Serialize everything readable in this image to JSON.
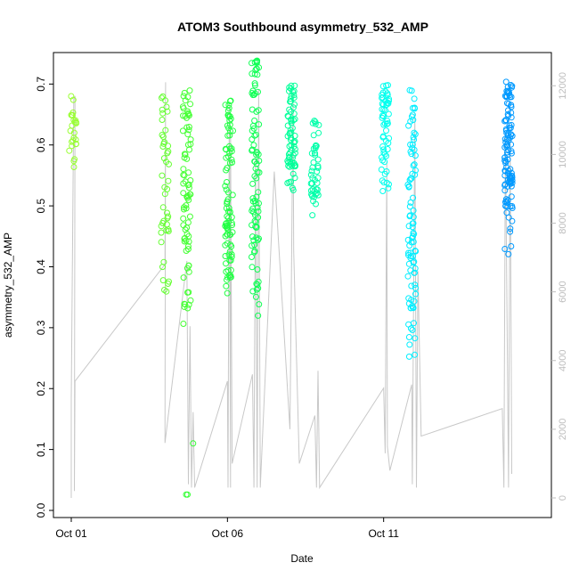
{
  "chart_data": {
    "type": "scatter",
    "title": "ATOM3 Southbound asymmetry_532_AMP",
    "xlabel": "Date",
    "ylabel": "asymmetry_532_AMP",
    "x_ticks": [
      "Oct 01",
      "Oct 06",
      "Oct 11"
    ],
    "y_ticks": [
      "0.0",
      "0.1",
      "0.2",
      "0.3",
      "0.4",
      "0.5",
      "0.6",
      "0.7"
    ],
    "y_right_ticks": [
      "0",
      "2000",
      "4000",
      "6000",
      "8000",
      "10000",
      "12000"
    ],
    "xlim_days": [
      0.0,
      14.8
    ],
    "ylim": [
      0.0,
      0.74
    ],
    "y_right_lim": [
      0,
      12500
    ],
    "legend": "none",
    "grid": false,
    "colors": {
      "secondary_line": "#c8c8c8",
      "right_axis": "#bdbdbd",
      "point_gradient_start": "#9bff33",
      "point_gradient_end": "#0099ff"
    },
    "scatter_clusters": [
      {
        "day": 0.05,
        "y_min": 0.54,
        "y_max": 0.68,
        "n": 25,
        "color": "#99ff33"
      },
      {
        "day": 3.0,
        "y_min": 0.32,
        "y_max": 0.68,
        "n": 45,
        "color": "#66ff33"
      },
      {
        "day": 3.7,
        "y_min": 0.28,
        "y_max": 0.69,
        "n": 80,
        "color": "#44ff33"
      },
      {
        "day": 5.05,
        "y_min": 0.31,
        "y_max": 0.68,
        "n": 90,
        "color": "#22ff44"
      },
      {
        "day": 5.9,
        "y_min": 0.29,
        "y_max": 0.74,
        "n": 90,
        "color": "#11ff55"
      },
      {
        "day": 7.05,
        "y_min": 0.5,
        "y_max": 0.7,
        "n": 70,
        "color": "#00ff99"
      },
      {
        "day": 7.8,
        "y_min": 0.47,
        "y_max": 0.64,
        "n": 45,
        "color": "#00ffaa"
      },
      {
        "day": 10.05,
        "y_min": 0.51,
        "y_max": 0.7,
        "n": 55,
        "color": "#00ffee"
      },
      {
        "day": 10.9,
        "y_min": 0.22,
        "y_max": 0.69,
        "n": 90,
        "color": "#00eeff"
      },
      {
        "day": 14.0,
        "y_min": 0.41,
        "y_max": 0.71,
        "n": 110,
        "color": "#0099ff"
      }
    ],
    "outlier_points": [
      {
        "day": 3.68,
        "y": 0.026,
        "color": "#33ff33"
      },
      {
        "day": 3.72,
        "y": 0.026,
        "color": "#33ff33"
      },
      {
        "day": 3.9,
        "y": 0.11,
        "color": "#33ff33"
      }
    ],
    "secondary_series": {
      "name": "",
      "axis": "right",
      "points": [
        [
          0.0,
          0
        ],
        [
          0.0,
          2900
        ],
        [
          0.08,
          11600
        ],
        [
          0.12,
          11700
        ],
        [
          0.1,
          200
        ],
        [
          0.12,
          3400
        ],
        [
          3.0,
          6800
        ],
        [
          3.02,
          12100
        ],
        [
          3.0,
          1600
        ],
        [
          3.7,
          6900
        ],
        [
          3.75,
          400
        ],
        [
          3.8,
          5000
        ],
        [
          3.85,
          300
        ],
        [
          3.9,
          2500
        ],
        [
          3.95,
          300
        ],
        [
          5.0,
          3400
        ],
        [
          5.02,
          300
        ],
        [
          5.06,
          11500
        ],
        [
          5.1,
          300
        ],
        [
          5.1,
          10800
        ],
        [
          5.15,
          1000
        ],
        [
          5.8,
          3600
        ],
        [
          5.85,
          300
        ],
        [
          5.9,
          10200
        ],
        [
          5.95,
          300
        ],
        [
          6.0,
          11900
        ],
        [
          6.05,
          300
        ],
        [
          6.5,
          9500
        ],
        [
          7.0,
          2000
        ],
        [
          7.05,
          6500
        ],
        [
          7.1,
          11800
        ],
        [
          7.12,
          7200
        ],
        [
          7.3,
          1000
        ],
        [
          7.8,
          2400
        ],
        [
          7.85,
          300
        ],
        [
          7.9,
          3700
        ],
        [
          7.95,
          300
        ],
        [
          10.0,
          3200
        ],
        [
          10.05,
          1300
        ],
        [
          10.1,
          9800
        ],
        [
          10.12,
          1500
        ],
        [
          10.2,
          800
        ],
        [
          10.9,
          3300
        ],
        [
          10.92,
          400
        ],
        [
          11.0,
          11200
        ],
        [
          11.05,
          300
        ],
        [
          11.1,
          6600
        ],
        [
          11.2,
          1800
        ],
        [
          13.8,
          2600
        ],
        [
          13.85,
          300
        ],
        [
          13.9,
          10600
        ],
        [
          14.0,
          300
        ],
        [
          14.05,
          10500
        ],
        [
          14.1,
          700
        ]
      ]
    }
  }
}
